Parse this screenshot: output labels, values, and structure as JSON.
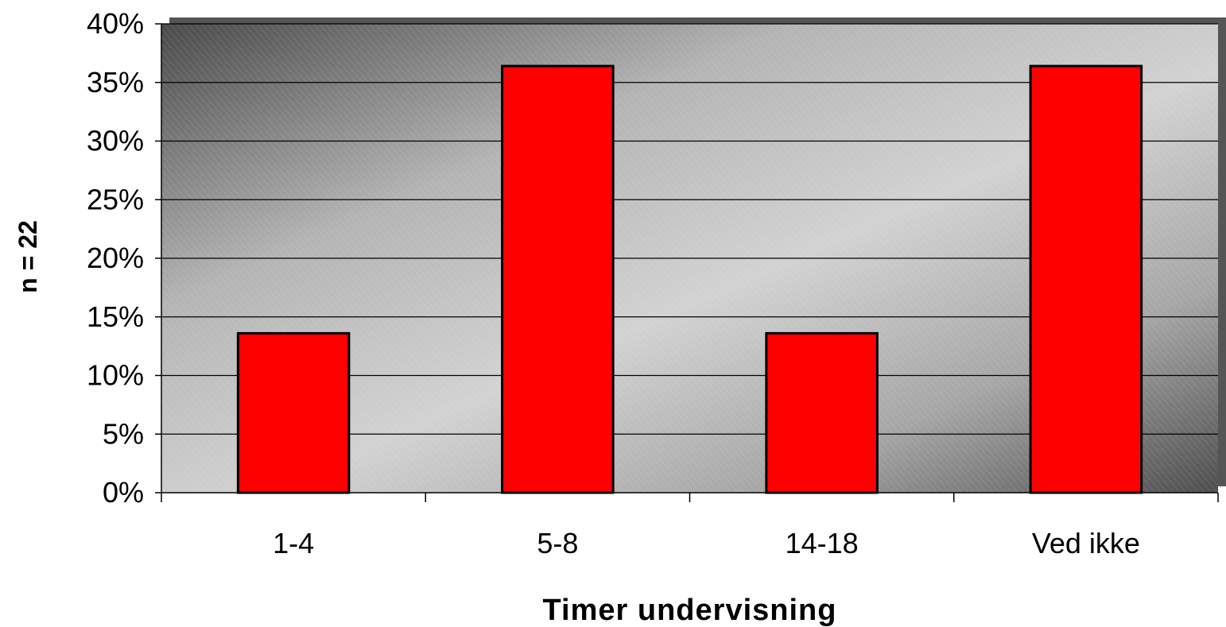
{
  "chart_data": {
    "type": "bar",
    "categories": [
      "1-4",
      "5-8",
      "14-18",
      "Ved ikke"
    ],
    "values": [
      13.6,
      36.4,
      13.6,
      36.4
    ],
    "value_unit": "%",
    "title": "",
    "xlabel": "Timer undervisning",
    "ylabel": "n = 22",
    "ylim": [
      0,
      40
    ],
    "yticks": [
      "0%",
      "5%",
      "10%",
      "15%",
      "20%",
      "25%",
      "30%",
      "35%",
      "40%"
    ],
    "grid": true,
    "legend": "none",
    "bar_color": "#ff0000",
    "bar_edge_color": "#000000"
  }
}
